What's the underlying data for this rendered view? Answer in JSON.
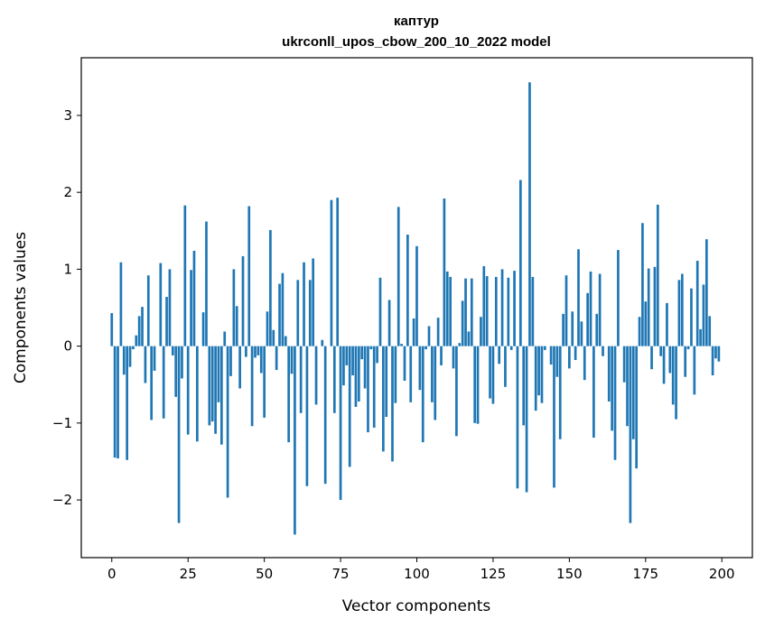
{
  "chart_data": {
    "type": "bar",
    "title": "каптур",
    "subtitle": "ukrconll_upos_cbow_200_10_2022 model",
    "xlabel": "Vector components",
    "ylabel": "Components values",
    "xlim": [
      -10,
      210
    ],
    "ylim": [
      -2.75,
      3.75
    ],
    "xticks": [
      0,
      25,
      50,
      75,
      100,
      125,
      150,
      175,
      200
    ],
    "yticks": [
      -2,
      -1,
      0,
      1,
      2,
      3
    ],
    "bar_color": "#1f77b4",
    "grid": false,
    "x": [
      0,
      1,
      2,
      3,
      4,
      5,
      6,
      7,
      8,
      9,
      10,
      11,
      12,
      13,
      14,
      15,
      16,
      17,
      18,
      19,
      20,
      21,
      22,
      23,
      24,
      25,
      26,
      27,
      28,
      29,
      30,
      31,
      32,
      33,
      34,
      35,
      36,
      37,
      38,
      39,
      40,
      41,
      42,
      43,
      44,
      45,
      46,
      47,
      48,
      49,
      50,
      51,
      52,
      53,
      54,
      55,
      56,
      57,
      58,
      59,
      60,
      61,
      62,
      63,
      64,
      65,
      66,
      67,
      68,
      69,
      70,
      71,
      72,
      73,
      74,
      75,
      76,
      77,
      78,
      79,
      80,
      81,
      82,
      83,
      84,
      85,
      86,
      87,
      88,
      89,
      90,
      91,
      92,
      93,
      94,
      95,
      96,
      97,
      98,
      99,
      100,
      101,
      102,
      103,
      104,
      105,
      106,
      107,
      108,
      109,
      110,
      111,
      112,
      113,
      114,
      115,
      116,
      117,
      118,
      119,
      120,
      121,
      122,
      123,
      124,
      125,
      126,
      127,
      128,
      129,
      130,
      131,
      132,
      133,
      134,
      135,
      136,
      137,
      138,
      139,
      140,
      141,
      142,
      143,
      144,
      145,
      146,
      147,
      148,
      149,
      150,
      151,
      152,
      153,
      154,
      155,
      156,
      157,
      158,
      159,
      160,
      161,
      162,
      163,
      164,
      165,
      166,
      167,
      168,
      169,
      170,
      171,
      172,
      173,
      174,
      175,
      176,
      177,
      178,
      179,
      180,
      181,
      182,
      183,
      184,
      185,
      186,
      187,
      188,
      189,
      190,
      191,
      192,
      193,
      194,
      195,
      196,
      197,
      198,
      199
    ],
    "values": [
      0.43,
      -1.45,
      -1.46,
      1.09,
      -0.37,
      -1.48,
      -0.27,
      -0.04,
      0.14,
      0.39,
      0.51,
      -0.48,
      0.92,
      -0.96,
      -0.32,
      0.0,
      1.08,
      -0.94,
      0.64,
      1.0,
      -0.12,
      -0.66,
      -2.3,
      -0.42,
      1.83,
      -1.15,
      0.99,
      1.24,
      -1.24,
      0.0,
      0.44,
      1.62,
      -1.03,
      -0.98,
      -1.14,
      -0.73,
      -1.28,
      0.19,
      -1.97,
      -0.39,
      1.0,
      0.52,
      -0.55,
      1.17,
      -0.14,
      1.82,
      -1.04,
      -0.15,
      -0.12,
      -0.35,
      -0.93,
      0.45,
      1.51,
      0.21,
      -0.31,
      0.81,
      0.95,
      0.13,
      -1.25,
      -0.36,
      -2.45,
      0.86,
      -0.87,
      1.09,
      -1.82,
      0.86,
      1.14,
      -0.76,
      0.0,
      0.08,
      -1.79,
      0.0,
      1.9,
      -0.87,
      1.93,
      -2.0,
      -0.51,
      -0.25,
      -1.57,
      -0.38,
      -0.79,
      -0.72,
      -0.17,
      -0.55,
      -1.12,
      -0.04,
      -1.06,
      -0.22,
      0.89,
      -1.37,
      -0.92,
      0.6,
      -1.5,
      -0.74,
      1.81,
      0.03,
      -0.45,
      1.45,
      -0.73,
      0.36,
      1.3,
      -0.57,
      -1.25,
      -0.04,
      0.26,
      -0.73,
      -0.96,
      0.37,
      -0.25,
      1.92,
      0.97,
      0.9,
      -0.29,
      -1.17,
      0.04,
      0.59,
      0.88,
      0.19,
      0.88,
      -1.0,
      -1.01,
      0.38,
      1.04,
      0.91,
      -0.68,
      -0.75,
      0.9,
      -0.23,
      1.0,
      -0.53,
      0.89,
      -0.05,
      0.98,
      -1.85,
      2.16,
      -1.03,
      -1.9,
      3.43,
      0.9,
      -0.84,
      -0.64,
      -0.74,
      -0.05,
      0.0,
      -0.24,
      -1.84,
      -0.4,
      -1.21,
      0.42,
      0.92,
      -0.29,
      0.45,
      -0.18,
      1.26,
      0.32,
      -0.44,
      0.69,
      0.97,
      -1.19,
      0.42,
      0.94,
      -0.13,
      0.0,
      -0.72,
      -1.1,
      -1.48,
      1.25,
      0.0,
      -0.47,
      -1.04,
      -2.3,
      -1.21,
      -1.59,
      0.38,
      1.6,
      0.58,
      1.01,
      -0.3,
      1.03,
      1.84,
      -0.13,
      -0.49,
      0.56,
      -0.35,
      -0.76,
      -0.95,
      0.86,
      0.94,
      -0.4,
      -0.04,
      0.75,
      -0.63,
      1.11,
      0.22,
      0.8,
      1.39,
      0.39,
      -0.38,
      -0.16,
      -0.2
    ]
  }
}
